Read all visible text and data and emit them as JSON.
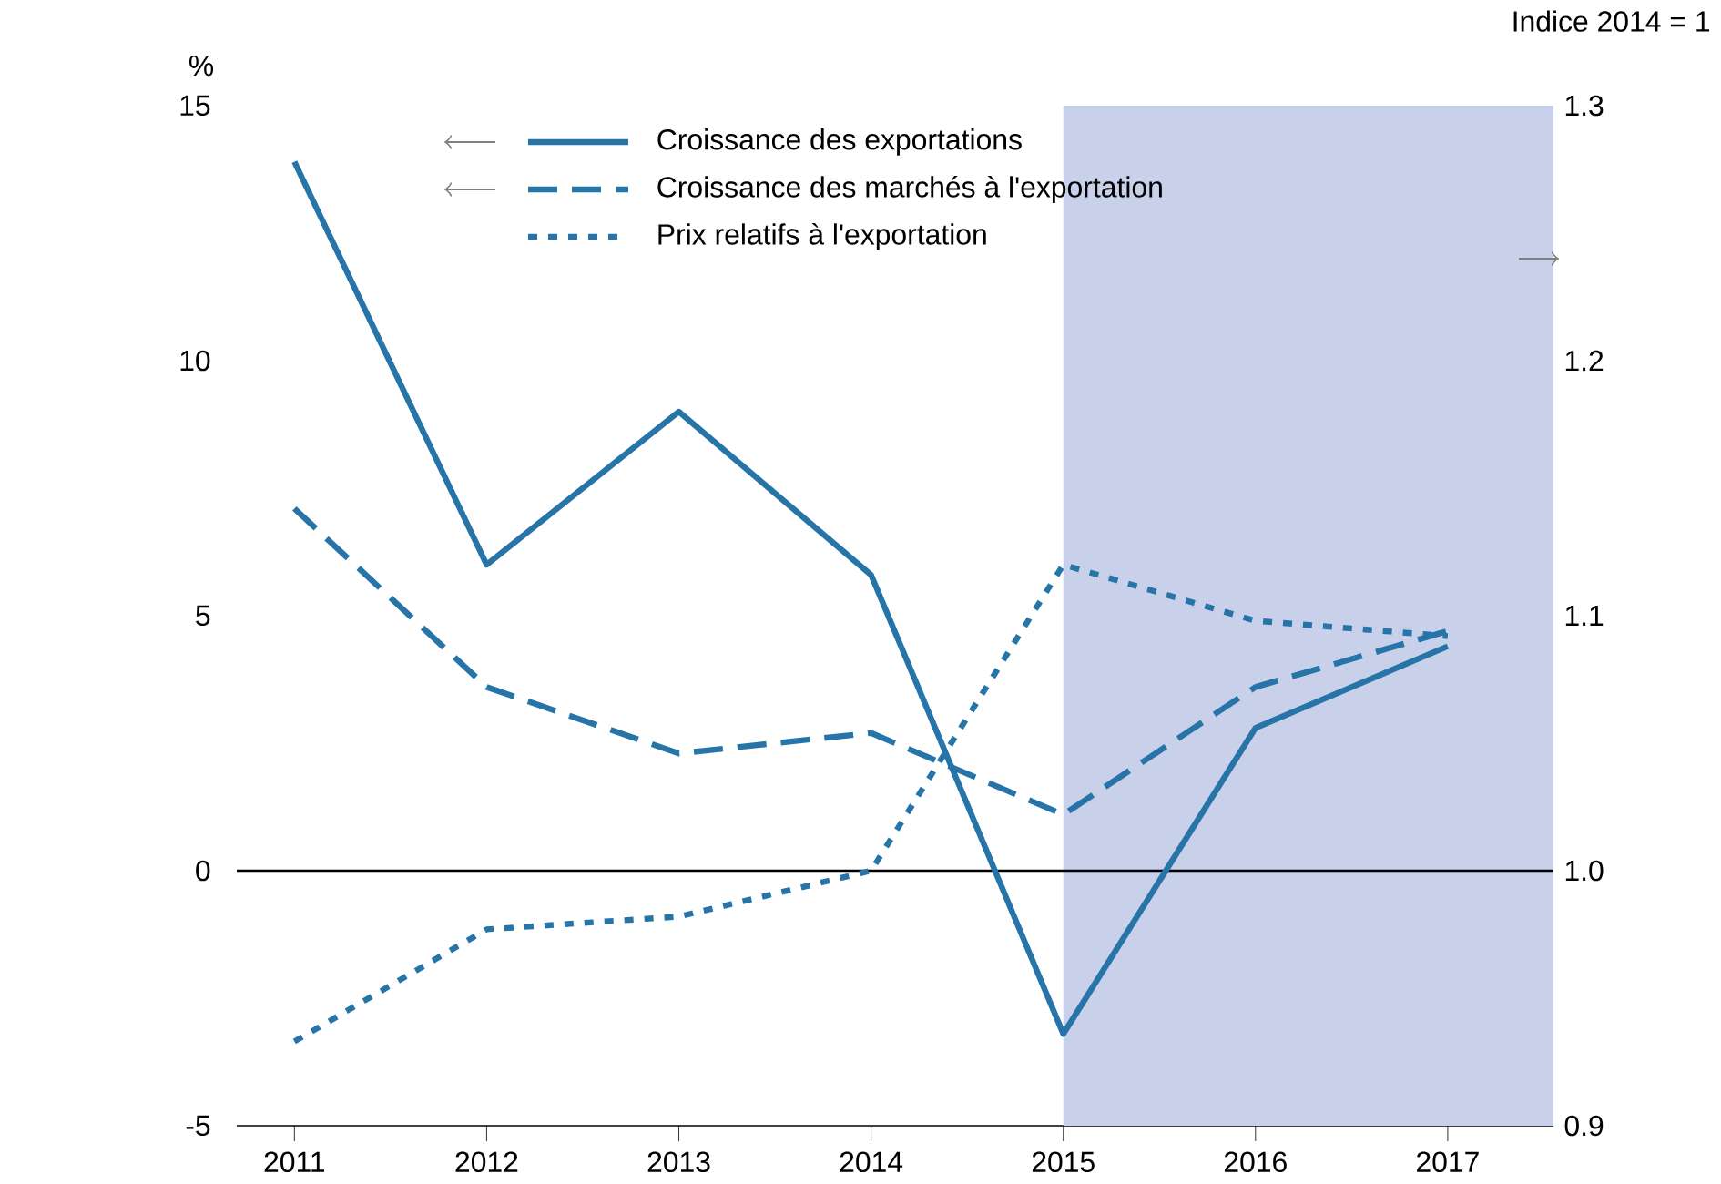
{
  "chart_data": {
    "type": "line",
    "ylabel": "%",
    "y2label": "Indice 2014 = 1",
    "x": [
      2011,
      2012,
      2013,
      2014,
      2015,
      2016,
      2017
    ],
    "xlim": [
      2010.7,
      2017.55
    ],
    "xticks": [
      2011,
      2012,
      2013,
      2014,
      2015,
      2016,
      2017
    ],
    "ylim": [
      -5,
      15
    ],
    "yticks": [
      -5,
      0,
      5,
      10,
      15
    ],
    "y2lim": [
      0.9,
      1.3
    ],
    "y2ticks": [
      0.9,
      {
        "value": 1.0,
        "label": "1.0"
      },
      1.1,
      1.2,
      1.3
    ],
    "series": [
      {
        "name": "Croissance des exportations",
        "color": "#2674a8",
        "line_style": "solid",
        "values": [
          13.9,
          6.0,
          9.0,
          5.8,
          -3.2,
          2.8,
          4.4
        ]
      },
      {
        "name": "Croissance des marchés à l'exportation",
        "color": "#2674a8",
        "line_style": "dashed",
        "values": [
          7.1,
          3.6,
          2.3,
          2.7,
          1.1,
          3.6,
          4.7
        ]
      },
      {
        "name": "Prix relatifs à l'exportation",
        "color": "#2674a8",
        "line_style": "dotted",
        "axis": "y2",
        "values": [
          0.933,
          0.977,
          0.982,
          1.0,
          1.12,
          1.098,
          1.092
        ]
      }
    ],
    "bands": [
      {
        "axis": "x",
        "from": 2015,
        "to": 2017.55,
        "color": "#c8d0ea"
      }
    ],
    "ref_lines": [
      {
        "axis": "y",
        "value": 0,
        "color": "#000000"
      }
    ],
    "legend": "top"
  }
}
